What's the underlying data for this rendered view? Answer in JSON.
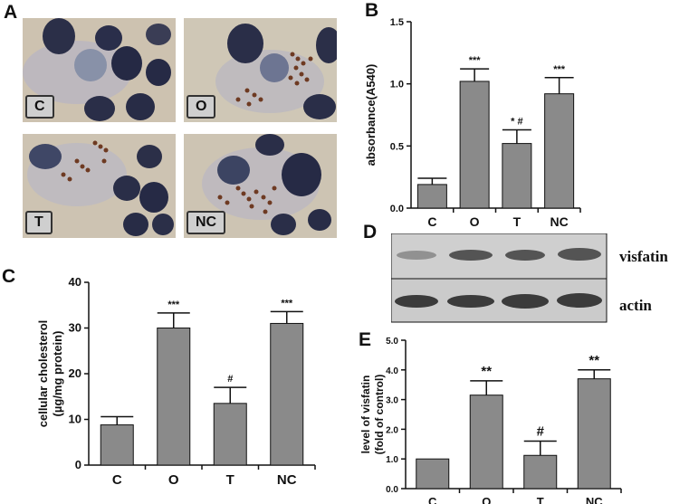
{
  "panels": {
    "A": {
      "letter": "A",
      "images": [
        {
          "label": "C"
        },
        {
          "label": "O"
        },
        {
          "label": "T"
        },
        {
          "label": "NC"
        }
      ]
    },
    "B": {
      "letter": "B"
    },
    "C": {
      "letter": "C"
    },
    "D": {
      "letter": "D",
      "bands": [
        {
          "label": "visfatin"
        },
        {
          "label": "actin"
        }
      ]
    },
    "E": {
      "letter": "E"
    }
  },
  "colors": {
    "bar": "#8a8a8a",
    "axis": "#111111",
    "blot_bg": "#c9c9c9",
    "band": "#2a2a2a"
  },
  "chart_data": [
    {
      "panel": "B",
      "type": "bar",
      "categories": [
        "C",
        "O",
        "T",
        "NC"
      ],
      "values": [
        0.19,
        1.02,
        0.52,
        0.92
      ],
      "errors": [
        0.05,
        0.1,
        0.11,
        0.13
      ],
      "annotations": [
        "",
        "***",
        "* #",
        "***"
      ],
      "ylabel": "absorbance(A540)",
      "ylim": [
        0,
        1.5
      ],
      "yticks": [
        "0.0",
        "0.5",
        "1.0",
        "1.5"
      ],
      "grid": false
    },
    {
      "panel": "C",
      "type": "bar",
      "categories": [
        "C",
        "O",
        "T",
        "NC"
      ],
      "values": [
        8.8,
        30.0,
        13.5,
        31.0
      ],
      "errors": [
        1.8,
        3.3,
        3.5,
        2.6
      ],
      "annotations": [
        "",
        "***",
        "#",
        "***"
      ],
      "ylabel": [
        "cellular cholesterol",
        "(µg/mg protein)"
      ],
      "ylim": [
        0,
        40
      ],
      "yticks": [
        "0",
        "10",
        "20",
        "30",
        "40"
      ],
      "grid": false
    },
    {
      "panel": "E",
      "type": "bar",
      "categories": [
        "C",
        "O",
        "T",
        "NC"
      ],
      "values": [
        1.0,
        3.15,
        1.12,
        3.7
      ],
      "errors": [
        0.0,
        0.48,
        0.48,
        0.3
      ],
      "annotations": [
        "",
        "**",
        "#",
        "**"
      ],
      "ylabel": [
        "level of visfatin",
        "(fold of control)"
      ],
      "ylim": [
        0,
        5.0
      ],
      "yticks": [
        "0.0",
        "1.0",
        "2.0",
        "3.0",
        "4.0",
        "5.0"
      ],
      "grid": false
    }
  ]
}
